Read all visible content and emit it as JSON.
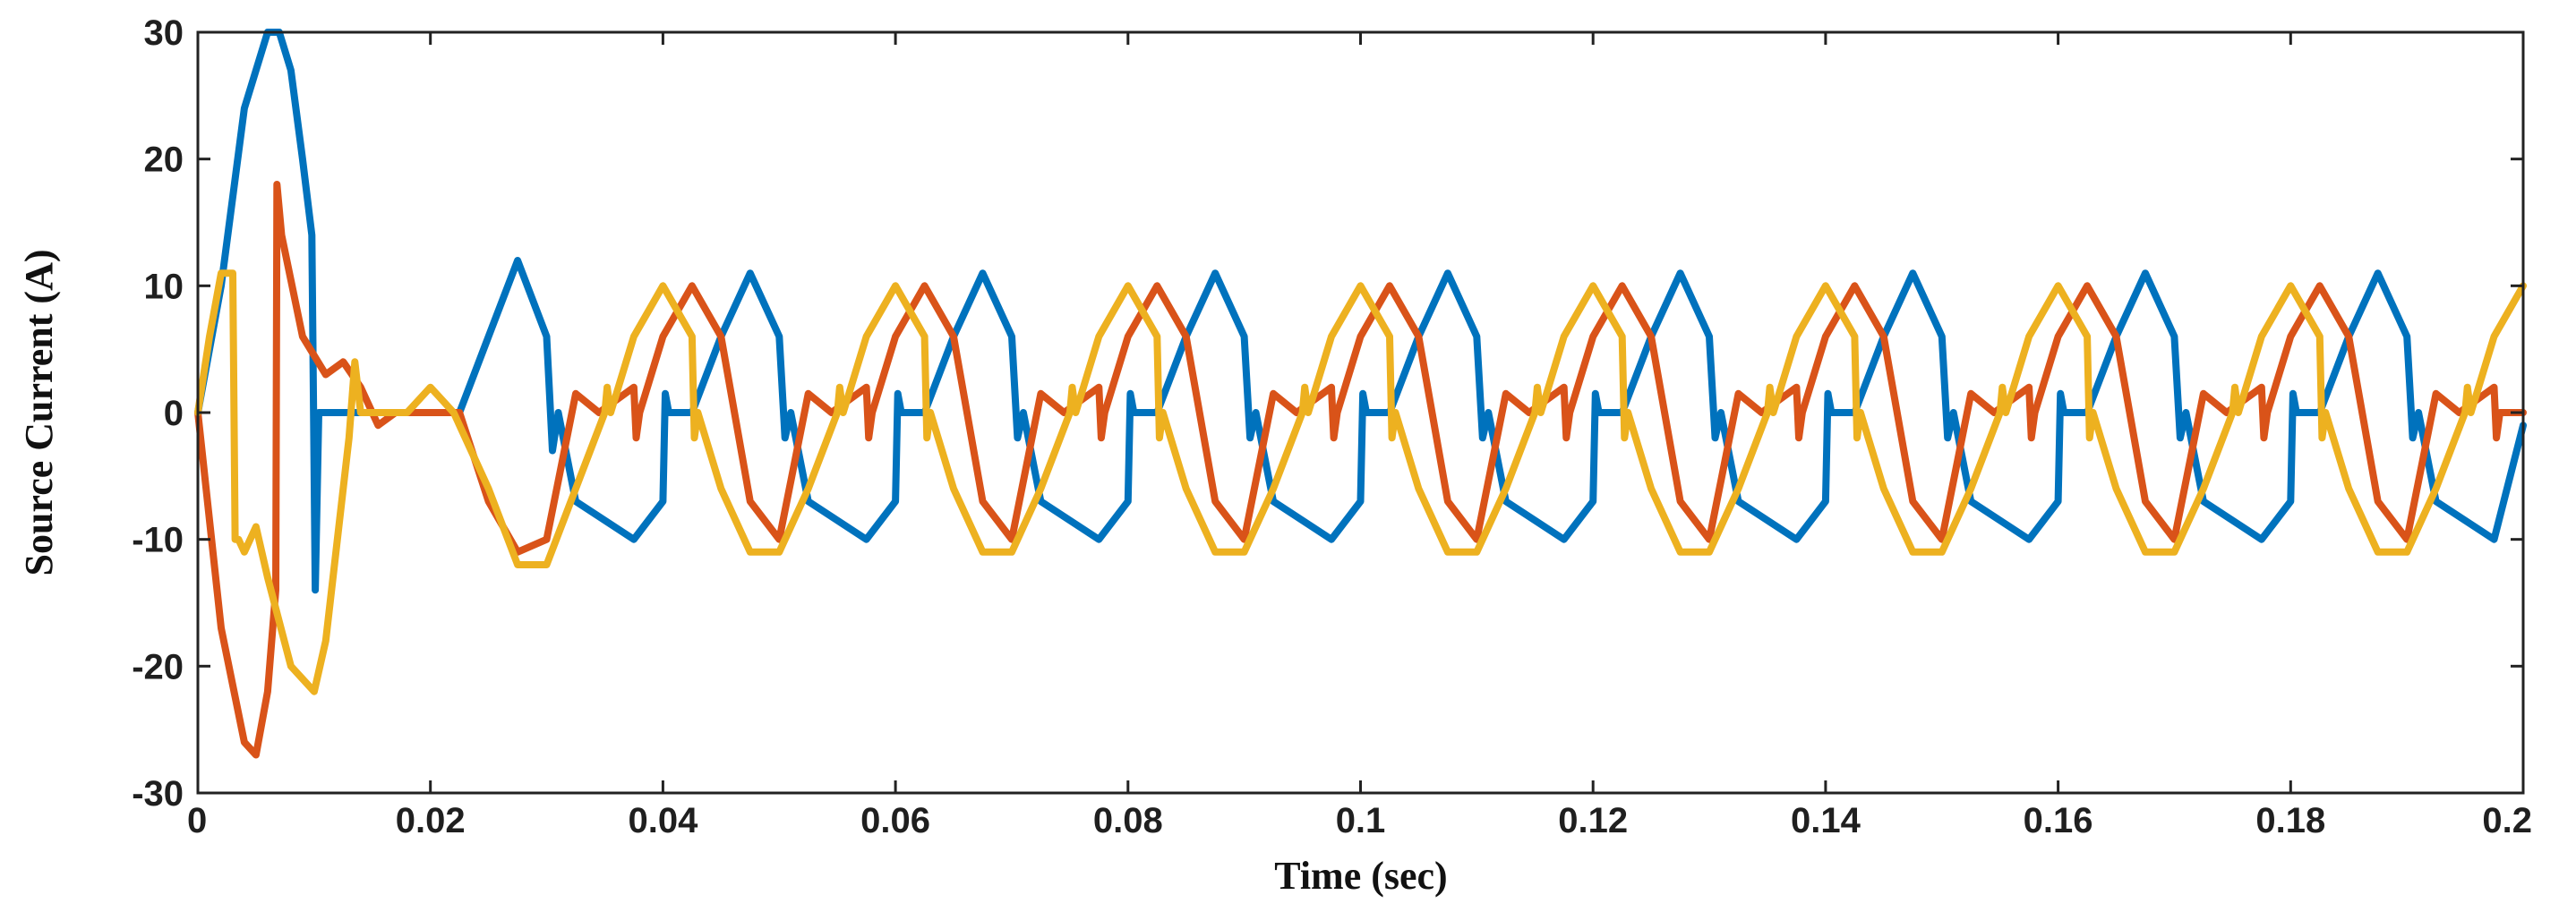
{
  "chart_data": {
    "type": "line",
    "title": "",
    "xlabel": "Time (sec)",
    "ylabel": "Source Current (A)",
    "xlim": [
      0,
      0.2
    ],
    "ylim": [
      -30,
      30
    ],
    "xticks": [
      0,
      0.02,
      0.04,
      0.06,
      0.08,
      0.1,
      0.12,
      0.14,
      0.16,
      0.18,
      0.2
    ],
    "xtick_labels": [
      "0",
      "0.02",
      "0.04",
      "0.06",
      "0.08",
      "0.1",
      "0.12",
      "0.14",
      "0.16",
      "0.18",
      "0.2"
    ],
    "yticks": [
      -30,
      -20,
      -10,
      0,
      10,
      20,
      30
    ],
    "ytick_labels": [
      "-30",
      "-20",
      "-10",
      "0",
      "10",
      "20",
      "30"
    ],
    "grid": false,
    "legend": "none",
    "series": [
      {
        "color": "#0072BD",
        "x": [
          0,
          0.002,
          0.004,
          0.006,
          0.007,
          0.008,
          0.009,
          0.0098,
          0.0101,
          0.0104,
          0.012,
          0.016,
          0.02,
          0.0225,
          0.025,
          0.0275,
          0.03,
          0.0305,
          0.031,
          0.0325,
          0.0375,
          0.04,
          0.0402,
          0.0405,
          0.0425,
          0.045,
          0.0475,
          0.05,
          0.0505,
          0.051,
          0.0525,
          0.0575,
          0.06,
          0.0602,
          0.0605,
          0.0625,
          0.065,
          0.0675,
          0.07,
          0.0705,
          0.071,
          0.0725,
          0.0775,
          0.08,
          0.0802,
          0.0805,
          0.0825,
          0.085,
          0.0875,
          0.09,
          0.0905,
          0.091,
          0.0925,
          0.0975,
          0.1,
          0.1002,
          0.1005,
          0.1025,
          0.105,
          0.1075,
          0.11,
          0.1105,
          0.111,
          0.1125,
          0.1175,
          0.12,
          0.1202,
          0.1205,
          0.1225,
          0.125,
          0.1275,
          0.13,
          0.1305,
          0.131,
          0.1325,
          0.1375,
          0.14,
          0.1402,
          0.1405,
          0.1425,
          0.145,
          0.1475,
          0.15,
          0.1505,
          0.151,
          0.1525,
          0.1575,
          0.16,
          0.1602,
          0.1605,
          0.1625,
          0.165,
          0.1675,
          0.17,
          0.1705,
          0.171,
          0.1725,
          0.1775,
          0.18,
          0.1802,
          0.1805,
          0.1825,
          0.185,
          0.1875,
          0.19,
          0.1905,
          0.191,
          0.1925,
          0.1975,
          0.2
        ],
        "y": [
          0,
          10,
          24,
          30,
          30,
          27,
          20,
          14,
          -14,
          0,
          0,
          0,
          0,
          0,
          6,
          12,
          6,
          -3,
          0,
          -7,
          -10,
          -7,
          1.5,
          0,
          0,
          6,
          11,
          6,
          -2,
          0,
          -7,
          -10,
          -7,
          1.5,
          0,
          0,
          6,
          11,
          6,
          -2,
          0,
          -7,
          -10,
          -7,
          1.5,
          0,
          0,
          6,
          11,
          6,
          -2,
          0,
          -7,
          -10,
          -7,
          1.5,
          0,
          0,
          6,
          11,
          6,
          -2,
          0,
          -7,
          -10,
          -7,
          1.5,
          0,
          0,
          6,
          11,
          6,
          -2,
          0,
          -7,
          -10,
          -7,
          1.5,
          0,
          0,
          6,
          11,
          6,
          -2,
          0,
          -7,
          -10,
          -7,
          1.5,
          0,
          0,
          6,
          11,
          6,
          -2,
          0,
          -7,
          -10,
          -7,
          1.5,
          0,
          0,
          6,
          11,
          6,
          -2,
          0,
          -7,
          -10,
          -1
        ]
      },
      {
        "color": "#D95319",
        "x": [
          0,
          0.002,
          0.004,
          0.005,
          0.006,
          0.0067,
          0.0068,
          0.0072,
          0.009,
          0.011,
          0.0125,
          0.014,
          0.0155,
          0.017,
          0.02,
          0.0225,
          0.025,
          0.0275,
          0.03,
          0.0325,
          0.0345,
          0.0375,
          0.0377,
          0.038,
          0.04,
          0.0425,
          0.045,
          0.0475,
          0.05,
          0.0525,
          0.0545,
          0.0575,
          0.0577,
          0.058,
          0.06,
          0.0625,
          0.065,
          0.0675,
          0.07,
          0.0725,
          0.0745,
          0.0775,
          0.0777,
          0.078,
          0.08,
          0.0825,
          0.085,
          0.0875,
          0.09,
          0.0925,
          0.0945,
          0.0975,
          0.0977,
          0.098,
          0.1,
          0.1025,
          0.105,
          0.1075,
          0.11,
          0.1125,
          0.1145,
          0.1175,
          0.1177,
          0.118,
          0.12,
          0.1225,
          0.125,
          0.1275,
          0.13,
          0.1325,
          0.1345,
          0.1375,
          0.1377,
          0.138,
          0.14,
          0.1425,
          0.145,
          0.1475,
          0.15,
          0.1525,
          0.1545,
          0.1575,
          0.1577,
          0.158,
          0.16,
          0.1625,
          0.165,
          0.1675,
          0.17,
          0.1725,
          0.1745,
          0.1775,
          0.1777,
          0.178,
          0.18,
          0.1825,
          0.185,
          0.1875,
          0.19,
          0.1925,
          0.1945,
          0.1975,
          0.1977,
          0.198,
          0.2
        ],
        "y": [
          0,
          -17,
          -26,
          -27,
          -22,
          -14,
          18,
          14,
          6,
          3,
          4,
          2,
          -1,
          0,
          0,
          0,
          -7,
          -11,
          -10,
          1.5,
          0,
          2,
          -2,
          0,
          6,
          10,
          6,
          -7,
          -10,
          1.5,
          0,
          2,
          -2,
          0,
          6,
          10,
          6,
          -7,
          -10,
          1.5,
          0,
          2,
          -2,
          0,
          6,
          10,
          6,
          -7,
          -10,
          1.5,
          0,
          2,
          -2,
          0,
          6,
          10,
          6,
          -7,
          -10,
          1.5,
          0,
          2,
          -2,
          0,
          6,
          10,
          6,
          -7,
          -10,
          1.5,
          0,
          2,
          -2,
          0,
          6,
          10,
          6,
          -7,
          -10,
          1.5,
          0,
          2,
          -2,
          0,
          6,
          10,
          6,
          -7,
          -10,
          1.5,
          0,
          2,
          -2,
          0,
          6,
          10,
          6,
          -7,
          -10,
          1.5,
          0,
          2,
          -2,
          0,
          0
        ]
      },
      {
        "color": "#EDB120",
        "x": [
          0,
          0.001,
          0.002,
          0.003,
          0.0032,
          0.0035,
          0.004,
          0.005,
          0.006,
          0.008,
          0.01,
          0.011,
          0.012,
          0.013,
          0.0135,
          0.014,
          0.016,
          0.018,
          0.02,
          0.021,
          0.022,
          0.025,
          0.0275,
          0.03,
          0.0325,
          0.035,
          0.0352,
          0.0355,
          0.0375,
          0.04,
          0.0425,
          0.0427,
          0.043,
          0.045,
          0.0475,
          0.05,
          0.0525,
          0.055,
          0.0552,
          0.0555,
          0.0575,
          0.06,
          0.0625,
          0.0627,
          0.063,
          0.065,
          0.0675,
          0.07,
          0.0725,
          0.075,
          0.0752,
          0.0755,
          0.0775,
          0.08,
          0.0825,
          0.0827,
          0.083,
          0.085,
          0.0875,
          0.09,
          0.0925,
          0.095,
          0.0952,
          0.0955,
          0.0975,
          0.1,
          0.1025,
          0.1027,
          0.103,
          0.105,
          0.1075,
          0.11,
          0.1125,
          0.115,
          0.1152,
          0.1155,
          0.1175,
          0.12,
          0.1225,
          0.1227,
          0.123,
          0.125,
          0.1275,
          0.13,
          0.1325,
          0.135,
          0.1352,
          0.1355,
          0.1375,
          0.14,
          0.1425,
          0.1427,
          0.143,
          0.145,
          0.1475,
          0.15,
          0.1525,
          0.155,
          0.1552,
          0.1555,
          0.1575,
          0.16,
          0.1625,
          0.1627,
          0.163,
          0.165,
          0.1675,
          0.17,
          0.1725,
          0.175,
          0.1752,
          0.1755,
          0.1775,
          0.18,
          0.1825,
          0.1827,
          0.183,
          0.185,
          0.1875,
          0.19,
          0.1925,
          0.195,
          0.1952,
          0.1955,
          0.1975,
          0.2
        ],
        "y": [
          0,
          6,
          11,
          11,
          -10,
          -10,
          -11,
          -9,
          -13,
          -20,
          -22,
          -18,
          -10,
          -2,
          4,
          0,
          0,
          0,
          2,
          1,
          0,
          -6,
          -12,
          -12,
          -6,
          0,
          2,
          0,
          6,
          10,
          6,
          -2,
          0,
          -6,
          -11,
          -11,
          -6,
          0,
          2,
          0,
          6,
          10,
          6,
          -2,
          0,
          -6,
          -11,
          -11,
          -6,
          0,
          2,
          0,
          6,
          10,
          6,
          -2,
          0,
          -6,
          -11,
          -11,
          -6,
          0,
          2,
          0,
          6,
          10,
          6,
          -2,
          0,
          -6,
          -11,
          -11,
          -6,
          0,
          2,
          0,
          6,
          10,
          6,
          -2,
          0,
          -6,
          -11,
          -11,
          -6,
          0,
          2,
          0,
          6,
          10,
          6,
          -2,
          0,
          -6,
          -11,
          -11,
          -6,
          0,
          2,
          0,
          6,
          10,
          6,
          -2,
          0,
          -6,
          -11,
          -11,
          -6,
          0,
          2,
          0,
          6,
          10,
          6,
          -2,
          0,
          -6,
          -11,
          -11,
          -6,
          0,
          2,
          0,
          6,
          10
        ]
      }
    ]
  }
}
